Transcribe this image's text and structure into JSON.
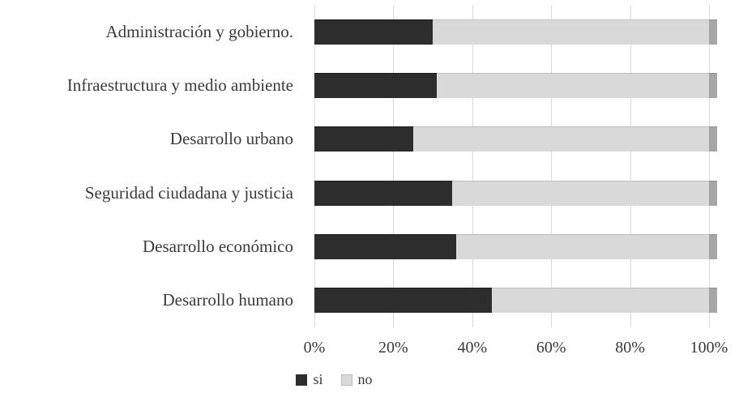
{
  "chart_data": {
    "type": "bar",
    "orientation": "horizontal",
    "stacked": true,
    "percent_stacked": true,
    "title": "",
    "xlabel": "",
    "ylabel": "",
    "xlim": [
      0,
      100
    ],
    "grid": true,
    "legend_position": "bottom",
    "categories": [
      "Administración y gobierno.",
      "Infraestructura y medio ambiente",
      "Desarrollo urbano",
      "Seguridad ciudadana y justicia",
      "Desarrollo económico",
      "Desarrollo humano"
    ],
    "series": [
      {
        "name": "si",
        "color": "#2d2d2d",
        "values": [
          30,
          31,
          25,
          35,
          36,
          45
        ]
      },
      {
        "name": "no",
        "color": "#d9d9d9",
        "values": [
          70,
          69,
          75,
          65,
          64,
          55
        ]
      }
    ],
    "x_ticks": [
      {
        "value": 0,
        "label": "0%"
      },
      {
        "value": 20,
        "label": "20%"
      },
      {
        "value": 40,
        "label": "40%"
      },
      {
        "value": 60,
        "label": "60%"
      },
      {
        "value": 80,
        "label": "80%"
      },
      {
        "value": 100,
        "label": "100%"
      }
    ],
    "colors": {
      "si": "#2d2d2d",
      "no": "#d9d9d9",
      "bar_side_cap": "#a6a6a6",
      "gridline": "#d9d9d9"
    }
  }
}
